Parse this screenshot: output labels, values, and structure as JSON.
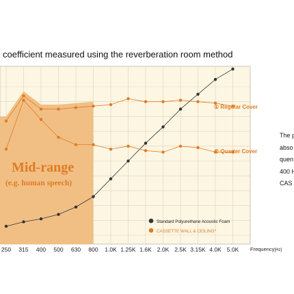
{
  "title": "coefficient measured using the reverberation room method",
  "side_text": [
    "The p",
    "abso",
    "quen",
    "400 H",
    "CAS"
  ],
  "colors": {
    "midrange_fill": "#f1bf84",
    "background_fill": "#fcf6e2",
    "orange": "#e07b24",
    "dark": "#333333",
    "grid": "#d9d3c4"
  },
  "chart_data": {
    "type": "line",
    "x_categories": [
      "250",
      "315",
      "400",
      "500",
      "630",
      "800",
      "1.0K",
      "1.25K",
      "1.6K",
      "2.0K",
      "2.5K",
      "3.15K",
      "4.0K",
      "5.0K"
    ],
    "xlabel": "Frequency",
    "xlabel_unit": "[Hz]",
    "grid": true,
    "legend_placement": "bottom-right",
    "region": {
      "label": "Mid-range",
      "sublabel": "(e.g. human speech)",
      "from": "250",
      "to": "800"
    },
    "series": [
      {
        "name": "Standard Polyurethane Acoustic Foam",
        "color": "#333333",
        "values": [
          0.06,
          0.09,
          0.11,
          0.14,
          0.19,
          0.26,
          0.38,
          0.5,
          0.62,
          0.73,
          0.85,
          0.95,
          1.05,
          1.12
        ]
      },
      {
        "name": "CASSETTE WALL & CEILING*",
        "label": "① Regular Cover",
        "color": "#e07b24",
        "values": [
          0.77,
          0.94,
          0.85,
          0.85,
          0.86,
          0.87,
          0.88,
          0.92,
          0.9,
          0.9,
          0.91,
          0.9,
          0.89,
          0.87
        ]
      },
      {
        "name": "CASSETTE WALL & CEILING*",
        "label": "② Quarter Cover",
        "color": "#e07b24",
        "values": [
          0.58,
          0.91,
          0.78,
          0.66,
          0.61,
          0.61,
          0.58,
          0.6,
          0.57,
          0.56,
          0.6,
          0.59,
          0.56,
          0.56
        ]
      }
    ]
  }
}
